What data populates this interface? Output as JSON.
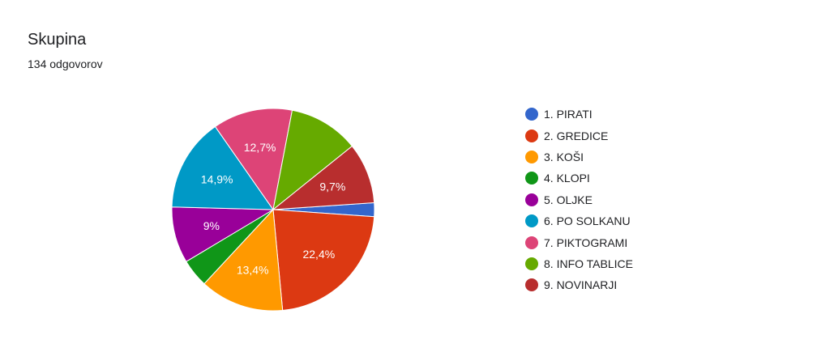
{
  "header": {
    "title": "Skupina",
    "responses": "134 odgovorov"
  },
  "chart_data": {
    "type": "pie",
    "title": "Skupina",
    "total": 134,
    "legend_position": "right",
    "slices": [
      {
        "name": "1. PIRATI",
        "value": 2.2,
        "color": "#3366cc",
        "label": ""
      },
      {
        "name": "2. GREDICE",
        "value": 22.4,
        "color": "#dc3912",
        "label": "22,4%"
      },
      {
        "name": "3. KOŠI",
        "value": 13.4,
        "color": "#ff9900",
        "label": "13,4%"
      },
      {
        "name": "4. KLOPI",
        "value": 4.5,
        "color": "#109618",
        "label": ""
      },
      {
        "name": "5. OLJKE",
        "value": 9.0,
        "color": "#990099",
        "label": "9%"
      },
      {
        "name": "6. PO SOLKANU",
        "value": 14.9,
        "color": "#0099c6",
        "label": "14,9%"
      },
      {
        "name": "7. PIKTOGRAMI",
        "value": 12.7,
        "color": "#dd4477",
        "label": "12,7%"
      },
      {
        "name": "8. INFO TABLICE",
        "value": 11.2,
        "color": "#66aa00",
        "label": ""
      },
      {
        "name": "9. NOVINARJI",
        "value": 9.7,
        "color": "#b82e2e",
        "label": "9,7%"
      }
    ]
  }
}
